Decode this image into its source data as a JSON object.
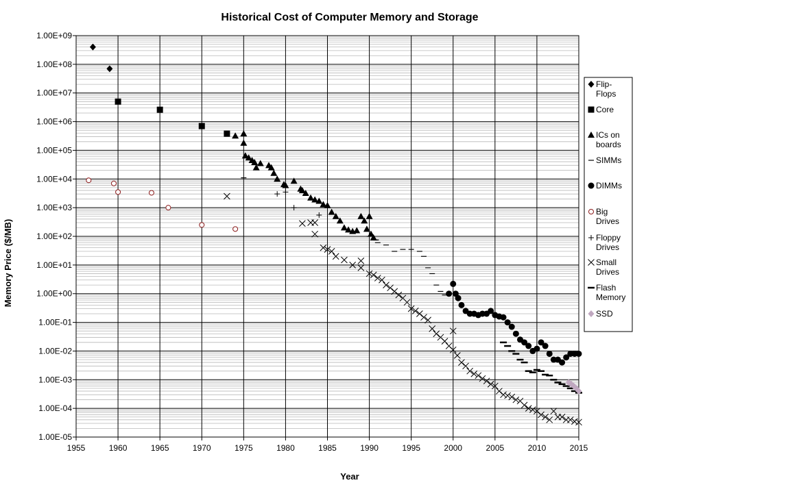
{
  "chart_data": {
    "type": "scatter",
    "title": "Historical Cost of Computer Memory and Storage",
    "xlabel": "Year",
    "ylabel": "Memory Price ($/MB)",
    "xlim": [
      1955,
      2015
    ],
    "ylim": [
      1e-05,
      1000000000.0
    ],
    "yscale": "log",
    "grid": true,
    "legend_position": "right",
    "x_ticks": [
      "1955",
      "1960",
      "1965",
      "1970",
      "1975",
      "1980",
      "1985",
      "1990",
      "1995",
      "2000",
      "2005",
      "2010",
      "2015"
    ],
    "x_tick_values": [
      1955,
      1960,
      1965,
      1970,
      1975,
      1980,
      1985,
      1990,
      1995,
      2000,
      2005,
      2010,
      2015
    ],
    "y_ticks": [
      "1.00E+09",
      "1.00E+08",
      "1.00E+07",
      "1.00E+06",
      "1.00E+05",
      "1.00E+04",
      "1.00E+03",
      "1.00E+02",
      "1.00E+01",
      "1.00E+00",
      "1.00E-01",
      "1.00E-02",
      "1.00E-03",
      "1.00E-04",
      "1.00E-05"
    ],
    "y_tick_values": [
      1000000000.0,
      100000000.0,
      10000000.0,
      1000000.0,
      100000.0,
      10000.0,
      1000.0,
      100.0,
      10.0,
      1.0,
      0.1,
      0.01,
      0.001,
      0.0001,
      1e-05
    ],
    "series": [
      {
        "name": "Flip-Flops",
        "legend_lines": [
          "Flip-",
          "Flops"
        ],
        "marker": "diamond",
        "color": "#000000",
        "points": [
          [
            1957,
            400000000
          ],
          [
            1959,
            70000000
          ]
        ]
      },
      {
        "name": "Core",
        "legend_lines": [
          "Core"
        ],
        "marker": "square",
        "color": "#000000",
        "points": [
          [
            1960,
            5000000
          ],
          [
            1965,
            2600000
          ],
          [
            1970,
            700000
          ],
          [
            1973,
            380000
          ]
        ]
      },
      {
        "name": "ICs on boards",
        "legend_lines": [
          "ICs on",
          "boards"
        ],
        "marker": "triangle",
        "color": "#000000",
        "points": [
          [
            1974,
            320000
          ],
          [
            1975,
            380000
          ],
          [
            1975,
            180000
          ],
          [
            1975.2,
            65000
          ],
          [
            1975.6,
            55000
          ],
          [
            1976,
            45000
          ],
          [
            1976.3,
            38000
          ],
          [
            1976.5,
            25000
          ],
          [
            1977,
            35000
          ],
          [
            1978,
            30000
          ],
          [
            1978.3,
            25000
          ],
          [
            1978.6,
            16000
          ],
          [
            1979,
            10000
          ],
          [
            1979.8,
            6500
          ],
          [
            1980,
            6000
          ],
          [
            1981,
            8500
          ],
          [
            1981.8,
            4500
          ],
          [
            1982,
            4000
          ],
          [
            1982.4,
            3200
          ],
          [
            1983,
            2200
          ],
          [
            1983.5,
            1900
          ],
          [
            1984,
            1700
          ],
          [
            1984.5,
            1300
          ],
          [
            1985,
            1200
          ],
          [
            1985.5,
            700
          ],
          [
            1986,
            500
          ],
          [
            1986.5,
            350
          ],
          [
            1987,
            200
          ],
          [
            1987.5,
            170
          ],
          [
            1988,
            150
          ],
          [
            1988.5,
            160
          ],
          [
            1989,
            500
          ],
          [
            1989.4,
            350
          ],
          [
            1989.7,
            180
          ],
          [
            1990,
            500
          ],
          [
            1990.2,
            120
          ],
          [
            1990.5,
            90
          ]
        ]
      },
      {
        "name": "SIMMs",
        "legend_lines": [
          "SIMMs"
        ],
        "marker": "dash",
        "color": "#000000",
        "points": [
          [
            1975,
            11000
          ],
          [
            1990,
            100
          ],
          [
            1990.8,
            75
          ],
          [
            1991,
            60
          ],
          [
            1992,
            50
          ],
          [
            1993,
            30
          ],
          [
            1994,
            35
          ],
          [
            1995,
            35
          ],
          [
            1996,
            30
          ],
          [
            1996.5,
            20
          ],
          [
            1997,
            8
          ],
          [
            1997.5,
            5
          ],
          [
            1998,
            2
          ],
          [
            1998.5,
            1.2
          ],
          [
            1999,
            0.9
          ]
        ]
      },
      {
        "name": "DIMMs",
        "legend_lines": [
          "DIMMs"
        ],
        "marker": "circle",
        "color": "#000000",
        "points": [
          [
            1999.5,
            1.0
          ],
          [
            2000,
            2.2
          ],
          [
            2000.3,
            1.0
          ],
          [
            2000.6,
            0.7
          ],
          [
            2001,
            0.4
          ],
          [
            2001.5,
            0.25
          ],
          [
            2002,
            0.2
          ],
          [
            2002.5,
            0.2
          ],
          [
            2003,
            0.18
          ],
          [
            2003.5,
            0.2
          ],
          [
            2004,
            0.2
          ],
          [
            2004.5,
            0.25
          ],
          [
            2005,
            0.18
          ],
          [
            2005.5,
            0.16
          ],
          [
            2006,
            0.15
          ],
          [
            2006.5,
            0.1
          ],
          [
            2007,
            0.07
          ],
          [
            2007.5,
            0.04
          ],
          [
            2008,
            0.025
          ],
          [
            2008.5,
            0.02
          ],
          [
            2009,
            0.015
          ],
          [
            2009.5,
            0.01
          ],
          [
            2010,
            0.012
          ],
          [
            2010.5,
            0.02
          ],
          [
            2011,
            0.015
          ],
          [
            2011.5,
            0.008
          ],
          [
            2012,
            0.005
          ],
          [
            2012.5,
            0.005
          ],
          [
            2013,
            0.004
          ],
          [
            2013.5,
            0.006
          ],
          [
            2014,
            0.008
          ],
          [
            2014.5,
            0.008
          ],
          [
            2015,
            0.008
          ]
        ]
      },
      {
        "name": "Big Drives",
        "legend_lines": [
          "Big",
          "Drives"
        ],
        "marker": "circle-open",
        "color": "#8b1a1a",
        "points": [
          [
            1956.5,
            9000
          ],
          [
            1959.5,
            7000
          ],
          [
            1960,
            3500
          ],
          [
            1964,
            3300
          ],
          [
            1966,
            1000
          ],
          [
            1970,
            250
          ],
          [
            1974,
            180
          ]
        ]
      },
      {
        "name": "Floppy Drives",
        "legend_lines": [
          "Floppy",
          "Drives"
        ],
        "marker": "plus",
        "color": "#000000",
        "points": [
          [
            1979,
            3000
          ],
          [
            1980,
            3500
          ],
          [
            1981,
            1000
          ],
          [
            1984,
            550
          ]
        ]
      },
      {
        "name": "Small Drives",
        "legend_lines": [
          "Small",
          "Drives"
        ],
        "marker": "x",
        "color": "#000000",
        "points": [
          [
            1973,
            2500
          ],
          [
            1982,
            280
          ],
          [
            1983,
            300
          ],
          [
            1983.5,
            300
          ],
          [
            1983.5,
            120
          ],
          [
            1984.5,
            40
          ],
          [
            1985,
            35
          ],
          [
            1985.5,
            30
          ],
          [
            1986,
            20
          ],
          [
            1987,
            15
          ],
          [
            1988,
            10
          ],
          [
            1989,
            14
          ],
          [
            1989,
            8
          ],
          [
            1990,
            5
          ],
          [
            1990.5,
            4.5
          ],
          [
            1991,
            3.5
          ],
          [
            1991.5,
            3
          ],
          [
            1992,
            2
          ],
          [
            1992.5,
            1.6
          ],
          [
            1993,
            1.2
          ],
          [
            1993.5,
            0.9
          ],
          [
            1994,
            0.7
          ],
          [
            1994.5,
            0.5
          ],
          [
            1995,
            0.3
          ],
          [
            1995.5,
            0.25
          ],
          [
            1996,
            0.2
          ],
          [
            1996.5,
            0.15
          ],
          [
            1997,
            0.12
          ],
          [
            1997.5,
            0.06
          ],
          [
            1998,
            0.04
          ],
          [
            1998.5,
            0.03
          ],
          [
            1999,
            0.022
          ],
          [
            1999.5,
            0.015
          ],
          [
            2000,
            0.05
          ],
          [
            2000,
            0.011
          ],
          [
            2000.5,
            0.007
          ],
          [
            2001,
            0.004
          ],
          [
            2001.5,
            0.003
          ],
          [
            2002,
            0.002
          ],
          [
            2002.5,
            0.0016
          ],
          [
            2003,
            0.0014
          ],
          [
            2003.5,
            0.0011
          ],
          [
            2004,
            0.0009
          ],
          [
            2004.5,
            0.0007
          ],
          [
            2005,
            0.0006
          ],
          [
            2005.5,
            0.0004
          ],
          [
            2006,
            0.0003
          ],
          [
            2006.5,
            0.00028
          ],
          [
            2007,
            0.00025
          ],
          [
            2007.5,
            0.0002
          ],
          [
            2008,
            0.00018
          ],
          [
            2008.5,
            0.00013
          ],
          [
            2009,
            0.0001
          ],
          [
            2009.5,
            9e-05
          ],
          [
            2010,
            8e-05
          ],
          [
            2010.5,
            6e-05
          ],
          [
            2011,
            5e-05
          ],
          [
            2011.5,
            4e-05
          ],
          [
            2012,
            8e-05
          ],
          [
            2012.5,
            5e-05
          ],
          [
            2013,
            5e-05
          ],
          [
            2013.5,
            4e-05
          ],
          [
            2014,
            4e-05
          ],
          [
            2014.5,
            3.5e-05
          ],
          [
            2015,
            3.3e-05
          ]
        ]
      },
      {
        "name": "Flash Memory",
        "legend_lines": [
          "Flash",
          "Memory"
        ],
        "marker": "bar",
        "color": "#000000",
        "points": [
          [
            2006,
            0.02
          ],
          [
            2006.5,
            0.015
          ],
          [
            2007,
            0.01
          ],
          [
            2007.5,
            0.008
          ],
          [
            2008,
            0.005
          ],
          [
            2008.5,
            0.004
          ],
          [
            2009,
            0.002
          ],
          [
            2009.5,
            0.0018
          ],
          [
            2010,
            0.0022
          ],
          [
            2010.5,
            0.002
          ],
          [
            2011,
            0.0015
          ],
          [
            2011.5,
            0.0014
          ],
          [
            2012,
            0.001
          ],
          [
            2012.5,
            0.0008
          ],
          [
            2013,
            0.0007
          ],
          [
            2013.5,
            0.0006
          ],
          [
            2014,
            0.0005
          ],
          [
            2014.5,
            0.0004
          ],
          [
            2015,
            0.00035
          ]
        ]
      },
      {
        "name": "SSD",
        "legend_lines": [
          "SSD"
        ],
        "marker": "diamond",
        "color": "#c0a8c0",
        "points": [
          [
            2013.8,
            0.0008
          ],
          [
            2014.1,
            0.0007
          ],
          [
            2014.4,
            0.0006
          ],
          [
            2014.7,
            0.0005
          ],
          [
            2015,
            0.0004
          ]
        ]
      }
    ]
  }
}
